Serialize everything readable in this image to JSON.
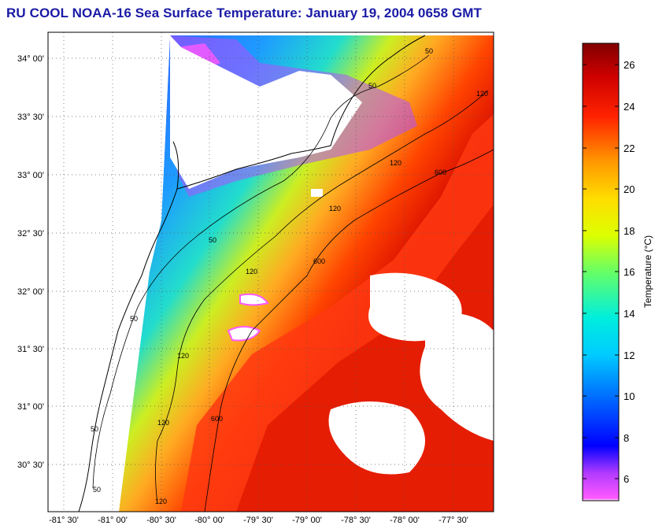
{
  "title": "RU COOL  NOAA-16  Sea Surface Temperature:  January 19, 2004 0658 GMT",
  "map": {
    "lat_labels": [
      "34° 00'",
      "33° 30'",
      "33° 00'",
      "32° 30'",
      "32° 00'",
      "31° 30'",
      "31° 00'",
      "30° 30'"
    ],
    "lon_labels": [
      "-81° 30'",
      "-81° 00'",
      "-80° 30'",
      "-80° 00'",
      "-79° 30'",
      "-79° 00'",
      "-78° 30'",
      "-78° 00'",
      "-77° 30'"
    ],
    "isobath_labels": [
      "50",
      "120",
      "600"
    ]
  },
  "colorbar": {
    "title": "Temperature (°C)",
    "ticks": [
      "26",
      "24",
      "22",
      "20",
      "18",
      "16",
      "14",
      "12",
      "10",
      "8",
      "6"
    ],
    "range": [
      5,
      27
    ],
    "colors": [
      "#ff59ff",
      "#3333ff",
      "#0099ff",
      "#00e6e6",
      "#33ff33",
      "#ffff00",
      "#ffaa00",
      "#ff3300",
      "#cc0000",
      "#800000"
    ]
  }
}
